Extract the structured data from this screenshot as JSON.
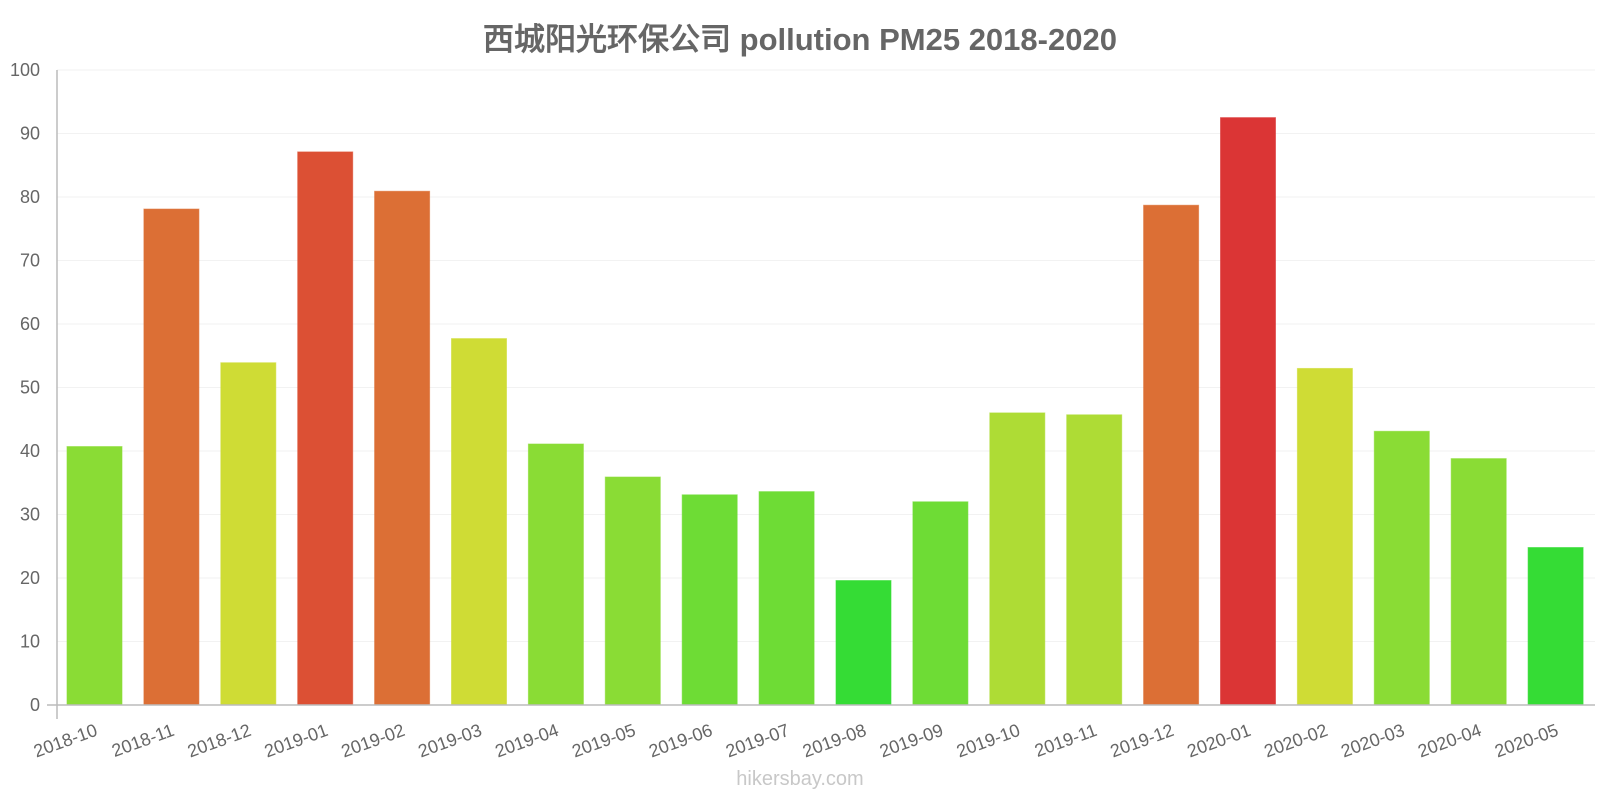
{
  "chart_data": {
    "type": "bar",
    "title": "西城阳光环保公司 pollution PM25 2018-2020",
    "xlabel": "",
    "ylabel": "",
    "ylim": [
      0,
      100
    ],
    "yticks": [
      0,
      10,
      20,
      30,
      40,
      50,
      60,
      70,
      80,
      90,
      100
    ],
    "grid": true,
    "legend": "none",
    "categories": [
      "2018-10",
      "2018-11",
      "2018-12",
      "2019-01",
      "2019-02",
      "2019-03",
      "2019-04",
      "2019-05",
      "2019-06",
      "2019-07",
      "2019-08",
      "2019-09",
      "2019-10",
      "2019-11",
      "2019-12",
      "2020-01",
      "2020-02",
      "2020-03",
      "2020-04",
      "2020-05"
    ],
    "values": [
      40.7,
      78.1,
      53.9,
      87.1,
      80.9,
      57.7,
      41.1,
      35.9,
      33.1,
      33.6,
      19.6,
      32.0,
      46.0,
      45.7,
      78.7,
      92.5,
      53.0,
      43.1,
      38.8,
      24.8
    ],
    "colors": [
      "#8ADC35",
      "#DC6F35",
      "#CFDC35",
      "#DC5034",
      "#DC6F35",
      "#CFDC35",
      "#8ADC35",
      "#8ADC35",
      "#6EDC35",
      "#6EDC35",
      "#35DC35",
      "#6EDC35",
      "#AEDC35",
      "#AEDC35",
      "#DC6F35",
      "#DB3535",
      "#CFDC35",
      "#8ADC35",
      "#8ADC35",
      "#35DC35"
    ]
  },
  "watermark": "hikersbay.com",
  "style": {
    "axis_color": "#bbbbbb",
    "grid_color": "#f2f2f2",
    "text_color": "#666666"
  }
}
